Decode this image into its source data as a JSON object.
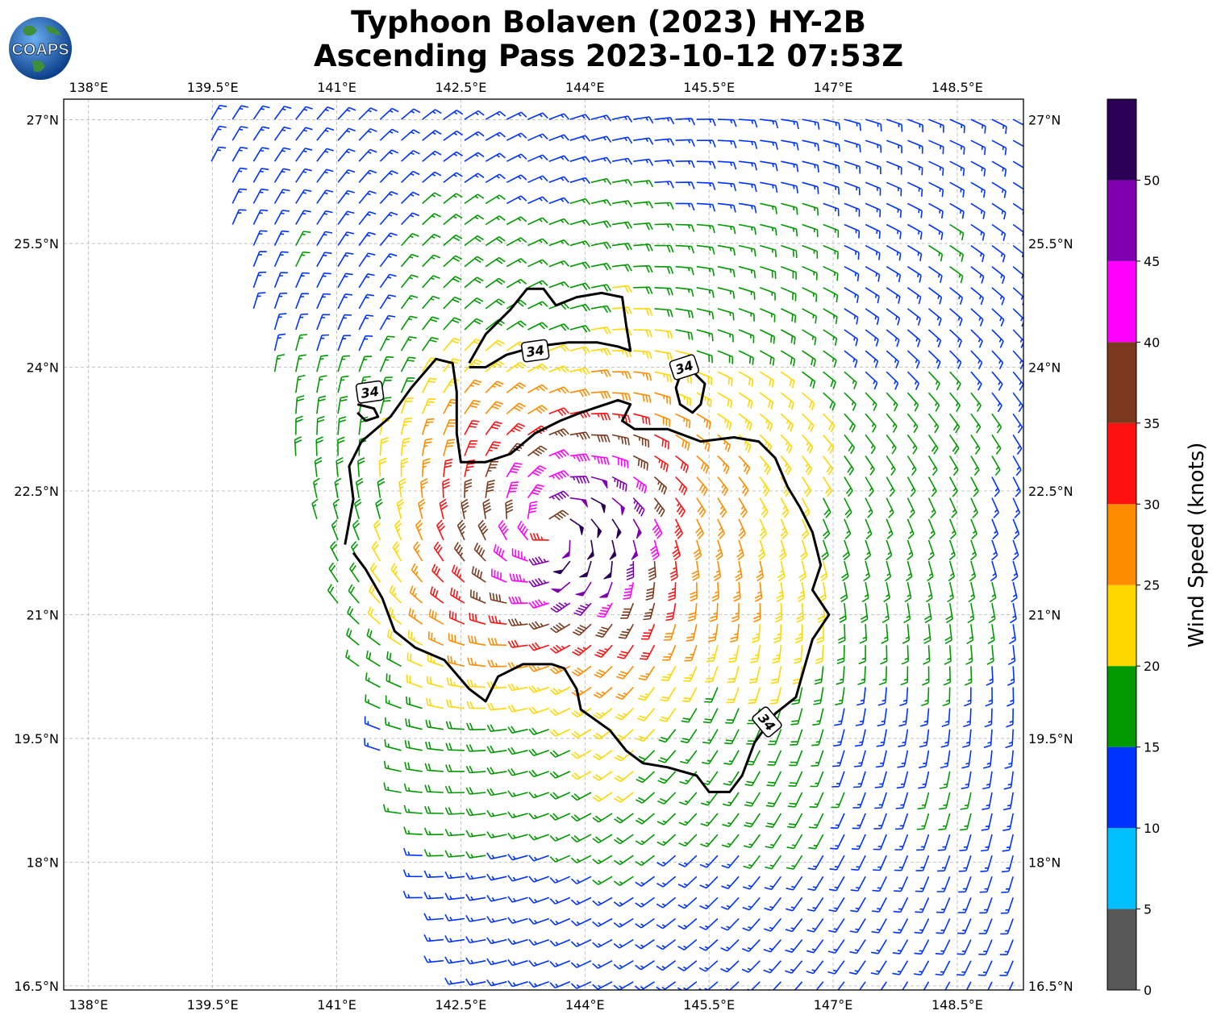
{
  "header": {
    "title_line1": "Typhoon Bolaven (2023) HY-2B",
    "title_line2": "Ascending Pass 2023-10-12 07:53Z",
    "logo_text": "COAPS"
  },
  "chart_data": {
    "type": "wind_barb_map",
    "title": "Typhoon Bolaven (2023) HY-2B Ascending Pass 2023-10-12 07:53Z",
    "xlim": [
      137.7,
      149.3
    ],
    "ylim": [
      16.45,
      27.25
    ],
    "x_ticks": [
      138,
      139.5,
      141,
      142.5,
      144,
      145.5,
      147,
      148.5
    ],
    "x_tick_labels": [
      "138°E",
      "139.5°E",
      "141°E",
      "142.5°E",
      "144°E",
      "145.5°E",
      "147°E",
      "148.5°E"
    ],
    "y_ticks": [
      16.5,
      18,
      19.5,
      21,
      22.5,
      24,
      25.5,
      27
    ],
    "y_tick_labels": [
      "16.5°N",
      "18°N",
      "19.5°N",
      "21°N",
      "22.5°N",
      "24°N",
      "25.5°N",
      "27°N"
    ],
    "grid": true,
    "storm_center": {
      "lon": 143.6,
      "lat": 22.0
    },
    "swath": {
      "corners": [
        {
          "lon": 139.2,
          "lat": 27.25
        },
        {
          "lon": 149.3,
          "lat": 27.25
        },
        {
          "lon": 149.3,
          "lat": 16.45
        },
        {
          "lon": 142.3,
          "lat": 16.45
        }
      ]
    },
    "wind_speed_max_knots": 52,
    "contour_level_knots": 34,
    "contour_label": "34",
    "contours": [
      {
        "name": "main",
        "points": [
          [
            141.1,
            21.85
          ],
          [
            141.2,
            22.4
          ],
          [
            141.15,
            22.8
          ],
          [
            141.3,
            23.1
          ],
          [
            141.65,
            23.4
          ],
          [
            141.9,
            23.75
          ],
          [
            142.2,
            24.1
          ],
          [
            142.4,
            24.05
          ],
          [
            142.45,
            23.7
          ],
          [
            142.45,
            23.2
          ],
          [
            142.5,
            22.85
          ],
          [
            142.8,
            22.85
          ],
          [
            143.1,
            22.95
          ],
          [
            143.4,
            23.2
          ],
          [
            143.7,
            23.35
          ],
          [
            143.95,
            23.45
          ],
          [
            144.4,
            23.6
          ],
          [
            144.55,
            23.55
          ],
          [
            144.45,
            23.35
          ],
          [
            144.6,
            23.25
          ],
          [
            145.0,
            23.25
          ],
          [
            145.4,
            23.1
          ],
          [
            145.8,
            23.15
          ],
          [
            146.1,
            23.1
          ],
          [
            146.3,
            22.9
          ],
          [
            146.45,
            22.55
          ],
          [
            146.6,
            22.3
          ],
          [
            146.75,
            22.0
          ],
          [
            146.85,
            21.6
          ],
          [
            146.75,
            21.3
          ],
          [
            146.95,
            21.0
          ],
          [
            146.75,
            20.7
          ],
          [
            146.65,
            20.35
          ],
          [
            146.55,
            20.0
          ],
          [
            146.3,
            19.8
          ],
          [
            146.05,
            19.45
          ],
          [
            145.9,
            19.05
          ],
          [
            145.75,
            18.85
          ],
          [
            145.5,
            18.85
          ],
          [
            145.35,
            19.05
          ],
          [
            145.0,
            19.15
          ],
          [
            144.7,
            19.2
          ],
          [
            144.5,
            19.35
          ],
          [
            144.3,
            19.6
          ],
          [
            143.95,
            19.85
          ],
          [
            143.9,
            20.1
          ],
          [
            143.75,
            20.35
          ],
          [
            143.6,
            20.4
          ],
          [
            143.25,
            20.4
          ],
          [
            142.95,
            20.25
          ],
          [
            142.8,
            19.95
          ],
          [
            142.6,
            20.1
          ],
          [
            142.3,
            20.45
          ],
          [
            141.95,
            20.6
          ],
          [
            141.7,
            20.8
          ],
          [
            141.55,
            21.2
          ],
          [
            141.35,
            21.55
          ],
          [
            141.2,
            21.75
          ]
        ]
      },
      {
        "name": "north-lobe",
        "points": [
          [
            142.6,
            24.05
          ],
          [
            142.8,
            24.4
          ],
          [
            143.1,
            24.7
          ],
          [
            143.3,
            24.95
          ],
          [
            143.5,
            24.95
          ],
          [
            143.65,
            24.75
          ],
          [
            143.9,
            24.85
          ],
          [
            144.2,
            24.9
          ],
          [
            144.45,
            24.85
          ],
          [
            144.5,
            24.5
          ],
          [
            144.55,
            24.2
          ],
          [
            144.4,
            24.25
          ],
          [
            144.15,
            24.3
          ],
          [
            143.8,
            24.3
          ],
          [
            143.4,
            24.25
          ],
          [
            143.05,
            24.15
          ],
          [
            142.8,
            24.0
          ],
          [
            142.6,
            24.0
          ]
        ]
      },
      {
        "name": "east-blob",
        "points": [
          [
            145.15,
            23.9
          ],
          [
            145.3,
            23.95
          ],
          [
            145.45,
            23.8
          ],
          [
            145.4,
            23.55
          ],
          [
            145.3,
            23.45
          ],
          [
            145.15,
            23.55
          ],
          [
            145.1,
            23.75
          ],
          [
            145.15,
            23.9
          ]
        ]
      },
      {
        "name": "west-blob",
        "points": [
          [
            141.25,
            23.55
          ],
          [
            141.45,
            23.5
          ],
          [
            141.5,
            23.4
          ],
          [
            141.35,
            23.35
          ],
          [
            141.25,
            23.45
          ]
        ]
      }
    ],
    "contour_labels": [
      {
        "text": "34",
        "lon": 143.4,
        "lat": 24.2,
        "rot": 8
      },
      {
        "text": "34",
        "lon": 145.2,
        "lat": 24.0,
        "rot": 18
      },
      {
        "text": "34",
        "lon": 141.4,
        "lat": 23.7,
        "rot": 8
      },
      {
        "text": "34",
        "lon": 146.2,
        "lat": 19.7,
        "rot": -50
      }
    ],
    "colorbar": {
      "label": "Wind Speed (knots)",
      "bins": [
        {
          "min": 0,
          "max": 5,
          "color": "#575757"
        },
        {
          "min": 5,
          "max": 10,
          "color": "#00bfff"
        },
        {
          "min": 10,
          "max": 15,
          "color": "#0033ff"
        },
        {
          "min": 15,
          "max": 20,
          "color": "#009900"
        },
        {
          "min": 20,
          "max": 25,
          "color": "#ffd700"
        },
        {
          "min": 25,
          "max": 30,
          "color": "#ff8c00"
        },
        {
          "min": 30,
          "max": 35,
          "color": "#ff1111"
        },
        {
          "min": 35,
          "max": 40,
          "color": "#7b3a1e"
        },
        {
          "min": 40,
          "max": 45,
          "color": "#ff00ff"
        },
        {
          "min": 45,
          "max": 50,
          "color": "#8000b0"
        },
        {
          "min": 50,
          "max": 55,
          "color": "#2a0057"
        }
      ],
      "ticks": [
        0,
        5,
        10,
        15,
        20,
        25,
        30,
        35,
        40,
        45,
        50
      ],
      "tick_labels": [
        "0",
        "5",
        "10",
        "15",
        "20",
        "25",
        "30",
        "35",
        "40",
        "45",
        "50"
      ]
    }
  },
  "colors": {
    "grid": "#b5b5b5",
    "contour": "#000000",
    "logo_ocean": "#1a5fb4",
    "logo_land": "#3f8f3a"
  }
}
